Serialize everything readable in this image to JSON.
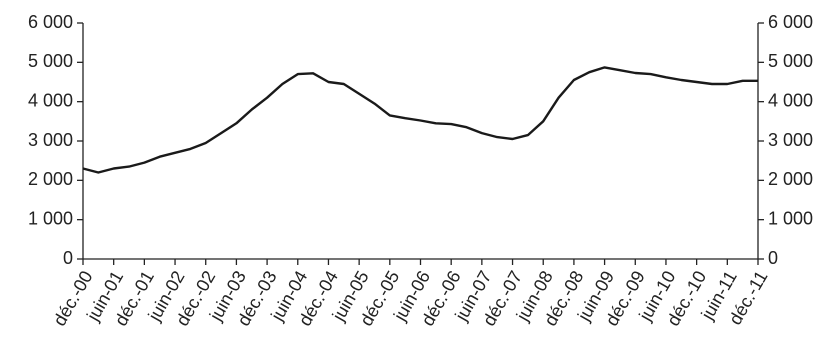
{
  "chart_data": {
    "type": "line",
    "categories": [
      "déc.-00",
      null,
      "juin-01",
      null,
      "déc.-01",
      null,
      "juin-02",
      null,
      "déc.-02",
      null,
      "juin-03",
      null,
      "déc.-03",
      null,
      "juin-04",
      null,
      "déc.-04",
      null,
      "juin-05",
      null,
      "déc.-05",
      null,
      "juin-06",
      null,
      "déc.-06",
      null,
      "juin-07",
      null,
      "déc.-07",
      null,
      "juin-08",
      null,
      "déc.-08",
      null,
      "juin-09",
      null,
      "déc.-09",
      null,
      "juin-10",
      null,
      "déc.-10",
      null,
      "juin-11",
      null,
      "déc.-11"
    ],
    "series": [
      {
        "color": "#1a1a1a",
        "values": [
          2300,
          2200,
          2300,
          2350,
          2450,
          2600,
          2700,
          2800,
          2950,
          3200,
          3450,
          3800,
          4100,
          4450,
          4700,
          4720,
          4500,
          4450,
          4200,
          3950,
          3650,
          3580,
          3520,
          3450,
          3430,
          3350,
          3200,
          3100,
          3050,
          3150,
          3500,
          4100,
          4550,
          4750,
          4870,
          4800,
          4730,
          4700,
          4620,
          4550,
          4500,
          4450,
          4450,
          4530,
          4530
        ]
      }
    ],
    "ylim": [
      0,
      6000
    ],
    "yticks": [
      {
        "value": 0,
        "label": "0"
      },
      {
        "value": 1000,
        "label": "1 000"
      },
      {
        "value": 2000,
        "label": "2 000"
      },
      {
        "value": 3000,
        "label": "3 000"
      },
      {
        "value": 4000,
        "label": "4 000"
      },
      {
        "value": 5000,
        "label": "5 000"
      },
      {
        "value": 6000,
        "label": "6 000"
      }
    ],
    "y2lim": [
      0,
      6000
    ],
    "y2ticks": [
      {
        "value": 0,
        "label": "0"
      },
      {
        "value": 1000,
        "label": "1 000"
      },
      {
        "value": 2000,
        "label": "2 000"
      },
      {
        "value": 3000,
        "label": "3 000"
      },
      {
        "value": 4000,
        "label": "4 000"
      },
      {
        "value": 5000,
        "label": "5 000"
      },
      {
        "value": 6000,
        "label": "6 000"
      }
    ]
  }
}
